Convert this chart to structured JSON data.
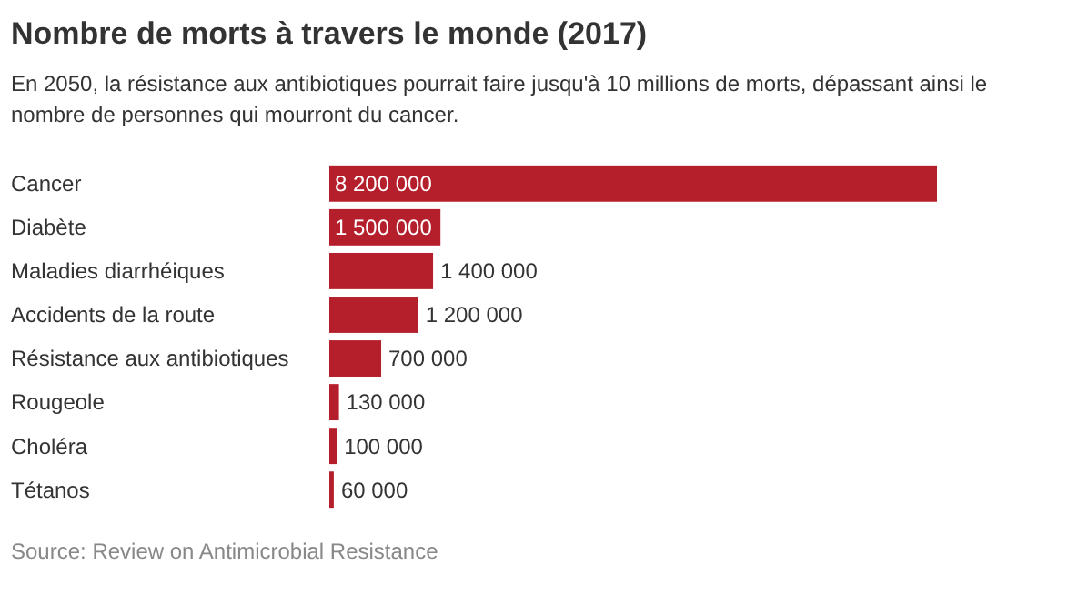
{
  "chart_data": {
    "type": "bar",
    "orientation": "horizontal",
    "title": "Nombre de morts à travers le monde (2017)",
    "subtitle": "En 2050, la résistance aux antibiotiques pourrait faire jusqu'à 10 millions de morts, dépassant ainsi le nombre de personnes qui mourront du cancer.",
    "categories": [
      "Cancer",
      "Diabète",
      "Maladies diarrhéiques",
      "Accidents de la route",
      "Résistance aux antibiotiques",
      "Rougeole",
      "Choléra",
      "Tétanos"
    ],
    "values": [
      8200000,
      1500000,
      1400000,
      1200000,
      700000,
      130000,
      100000,
      60000
    ],
    "value_labels": [
      "8 200 000",
      "1 500 000",
      "1 400 000",
      "1 200 000",
      "700 000",
      "130 000",
      "100 000",
      "60 000"
    ],
    "color": "#b51f2b",
    "annotations": [
      "Source: Review on Antimicrobial Resistance"
    ]
  }
}
